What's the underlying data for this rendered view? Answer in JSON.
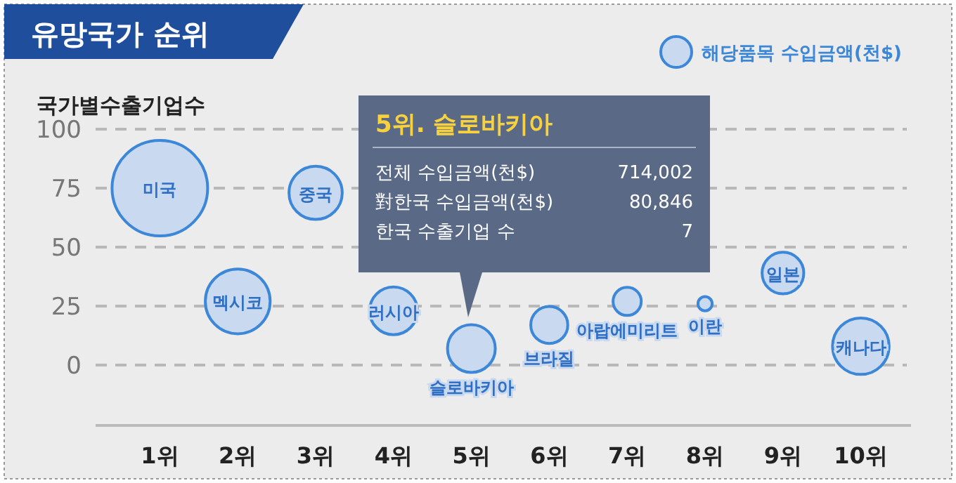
{
  "chart_data": {
    "type": "bubble",
    "title": "유망국가 순위",
    "ylabel": "국가별수출기업수",
    "categories": [
      "1위",
      "2위",
      "3위",
      "4위",
      "5위",
      "6위",
      "7위",
      "8위",
      "9위",
      "10위"
    ],
    "ylim": [
      0,
      100
    ],
    "yticks": [
      0,
      25,
      50,
      75,
      100
    ],
    "grid": "y",
    "legend": "top right",
    "series": [
      {
        "name": "해당품목 수입금액(천$)",
        "color": "#3c87d8",
        "values": [
          75,
          27,
          73,
          23,
          7,
          17,
          27,
          26,
          39,
          8
        ],
        "sizes": [
          1,
          0.46,
          0.31,
          0.25,
          0.25,
          0.15,
          0.087,
          0.022,
          0.19,
          0.35
        ]
      }
    ],
    "annotations": [
      {
        "text": "미국",
        "x": "1위",
        "y": 75
      },
      {
        "text": "멕시코",
        "x": "2위",
        "y": 27
      },
      {
        "text": "중국",
        "x": "3위",
        "y": 73
      },
      {
        "text": "러시아",
        "x": "4위",
        "y": 23
      },
      {
        "text": "슬로바키아",
        "x": "5위",
        "y": 7
      },
      {
        "text": "브라질",
        "x": "6위",
        "y": 17
      },
      {
        "text": "아랍에미리트",
        "x": "7위",
        "y": 27
      },
      {
        "text": "이란",
        "x": "8위",
        "y": 26
      },
      {
        "text": "일본",
        "x": "9위",
        "y": 39
      },
      {
        "text": "캐나다",
        "x": "10위",
        "y": 8
      },
      "5위. 슬로바키아",
      "전체 수입금액(천$)",
      "714,002",
      "對한국 수입금액(천$)",
      "80,846",
      "한국 수출기업 수",
      "7"
    ]
  }
}
